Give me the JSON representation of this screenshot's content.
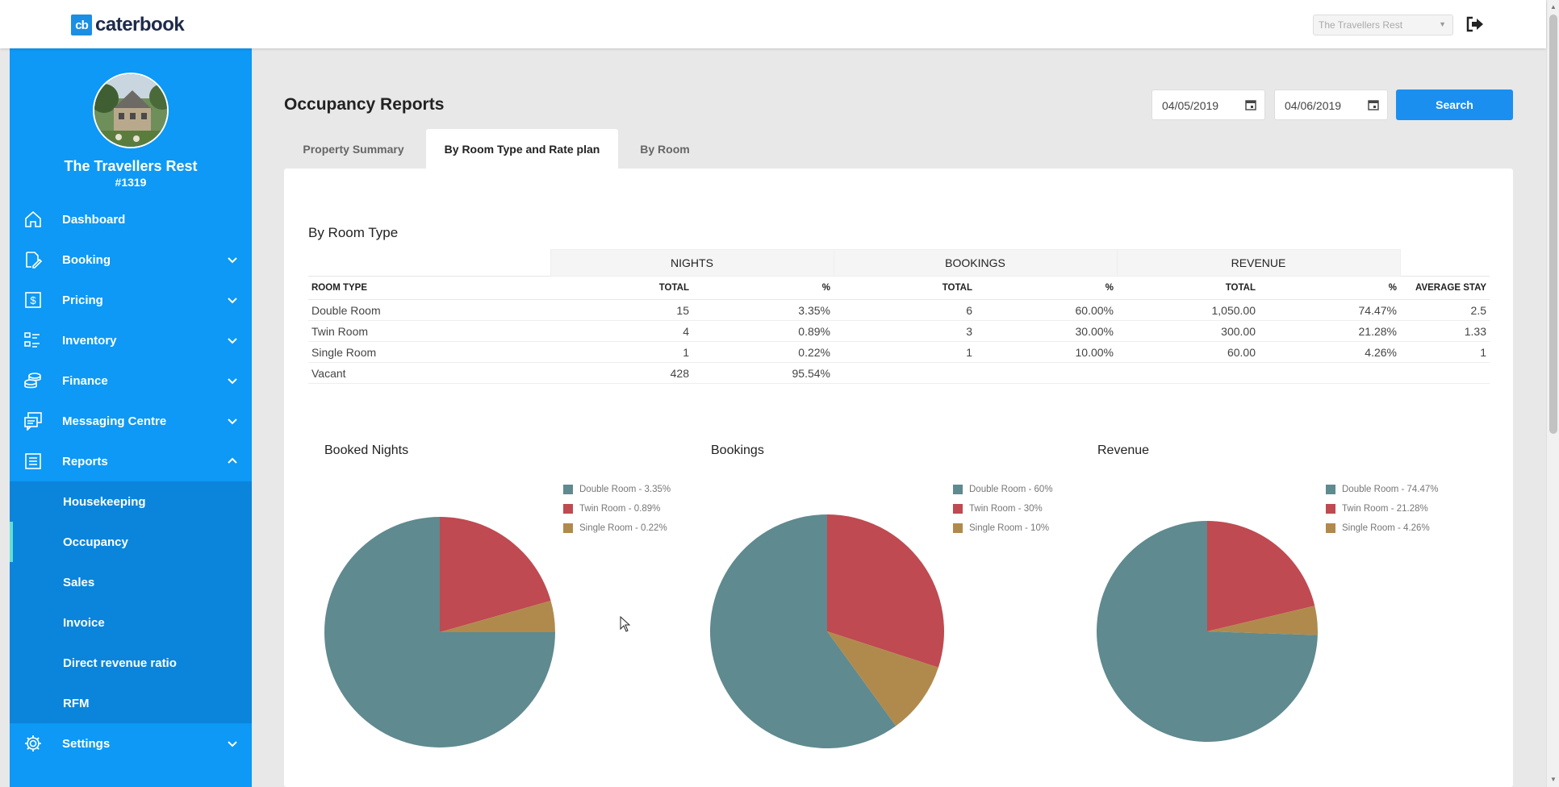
{
  "brand": {
    "logo_mark": "cb",
    "name": "caterbook"
  },
  "topbar": {
    "property_select": "The Travellers Rest",
    "logout_icon": "logout-icon"
  },
  "sidebar": {
    "property_name": "The Travellers Rest",
    "property_id": "#1319",
    "nav": [
      {
        "label": "Dashboard",
        "icon": "home-icon"
      },
      {
        "label": "Booking",
        "icon": "edit-icon"
      },
      {
        "label": "Pricing",
        "icon": "dollar-icon"
      },
      {
        "label": "Inventory",
        "icon": "list-icon"
      },
      {
        "label": "Finance",
        "icon": "coins-icon"
      },
      {
        "label": "Messaging Centre",
        "icon": "messages-icon"
      },
      {
        "label": "Reports",
        "icon": "report-icon"
      },
      {
        "label": "Settings",
        "icon": "gear-icon"
      }
    ],
    "reports_sub": [
      "Housekeeping",
      "Occupancy",
      "Sales",
      "Invoice",
      "Direct revenue ratio",
      "RFM"
    ],
    "active_sub": "Occupancy"
  },
  "header": {
    "title": "Occupancy Reports",
    "date_from": "04/05/2019",
    "date_to": "04/06/2019",
    "search_label": "Search"
  },
  "tabs": [
    "Property Summary",
    "By Room Type and Rate plan",
    "By Room"
  ],
  "active_tab": "By Room Type and Rate plan",
  "section_title": "By Room Type",
  "table": {
    "groups": [
      "NIGHTS",
      "BOOKINGS",
      "REVENUE"
    ],
    "columns": [
      "ROOM TYPE",
      "TOTAL",
      "%",
      "TOTAL",
      "%",
      "TOTAL",
      "%",
      "AVERAGE STAY"
    ],
    "rows": [
      [
        "Double Room",
        "15",
        "3.35%",
        "6",
        "60.00%",
        "1,050.00",
        "74.47%",
        "2.5"
      ],
      [
        "Twin Room",
        "4",
        "0.89%",
        "3",
        "30.00%",
        "300.00",
        "21.28%",
        "1.33"
      ],
      [
        "Single Room",
        "1",
        "0.22%",
        "1",
        "10.00%",
        "60.00",
        "4.26%",
        "1"
      ],
      [
        "Vacant",
        "428",
        "95.54%",
        "",
        "",
        "",
        "",
        ""
      ]
    ]
  },
  "colors": {
    "double": "#5f8a8f",
    "twin": "#bf4a51",
    "single": "#b08a4d",
    "sidebar": "#0d99f5",
    "accent": "#1a8ff0"
  },
  "charts": [
    {
      "title": "Booked Nights",
      "legend": [
        "Double Room - 3.35%",
        "Twin Room - 0.89%",
        "Single Room - 0.22%"
      ]
    },
    {
      "title": "Bookings",
      "legend": [
        "Double Room - 60%",
        "Twin Room - 30%",
        "Single Room - 10%"
      ]
    },
    {
      "title": "Revenue",
      "legend": [
        "Double Room - 74.47%",
        "Twin Room - 21.28%",
        "Single Room - 4.26%"
      ]
    }
  ],
  "chart_data": [
    {
      "type": "pie",
      "title": "Booked Nights",
      "categories": [
        "Double Room",
        "Twin Room",
        "Single Room"
      ],
      "values": [
        75,
        20.6,
        4.4
      ],
      "legend": "top-right"
    },
    {
      "type": "pie",
      "title": "Bookings",
      "categories": [
        "Double Room",
        "Twin Room",
        "Single Room"
      ],
      "values": [
        60,
        30,
        10
      ],
      "legend": "top-right"
    },
    {
      "type": "pie",
      "title": "Revenue",
      "categories": [
        "Double Room",
        "Twin Room",
        "Single Room"
      ],
      "values": [
        74.47,
        21.28,
        4.26
      ],
      "legend": "top-right"
    }
  ]
}
